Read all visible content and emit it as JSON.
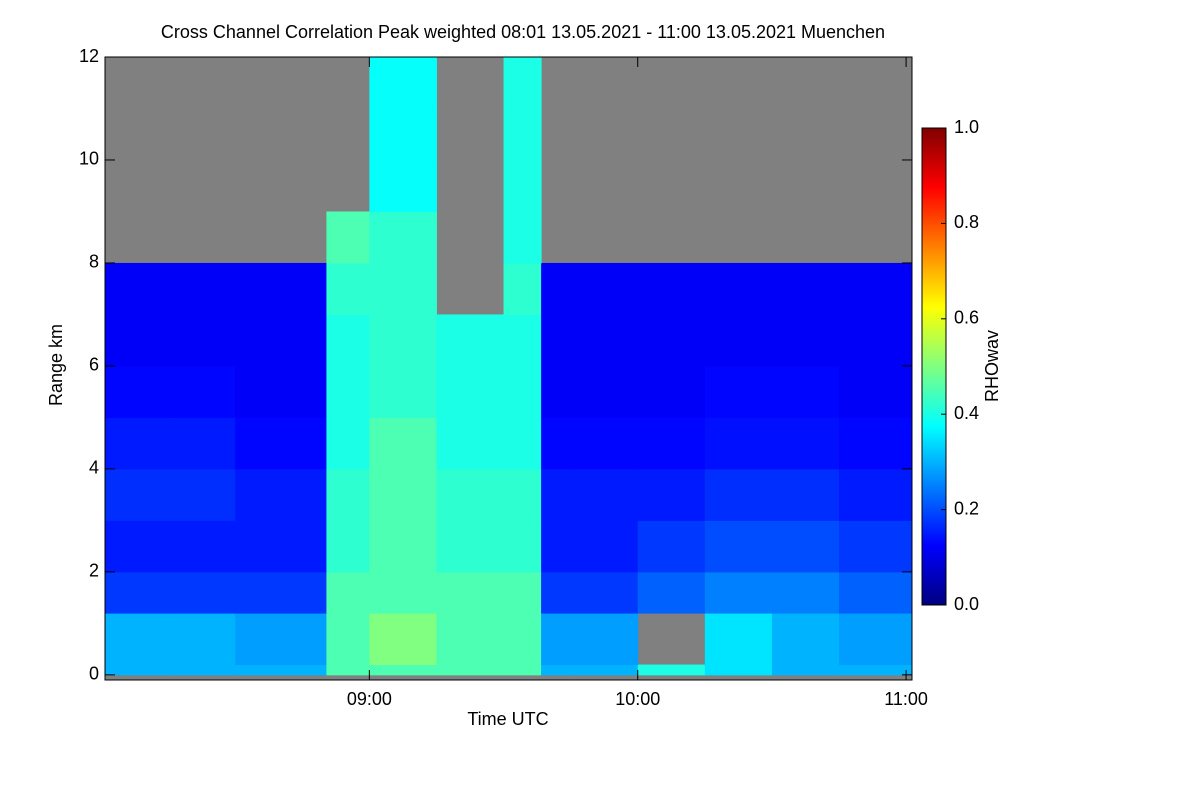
{
  "chart_data": {
    "type": "heatmap",
    "title": "Cross Channel Correlation Peak weighted   08:01 13.05.2021 - 11:00 13.05.2021 Muenchen",
    "x_label": "Time UTC",
    "y_label": "Range km",
    "colorbar_label": "RHOwav",
    "colormap": "jet",
    "missing_color": "#808080",
    "x_edges": [
      8.015,
      8.25,
      8.5,
      8.84,
      9.0,
      9.25,
      9.5,
      9.64,
      9.75,
      10.0,
      10.25,
      10.5,
      10.75,
      11.022
    ],
    "y_edges": [
      0,
      0.2,
      1.2,
      2,
      3,
      4,
      5,
      6,
      7,
      8,
      9,
      10,
      11,
      12
    ],
    "values": [
      [
        0.3,
        0.3,
        0.3,
        0.45,
        0.45,
        0.45,
        0.45,
        0.3,
        0.3,
        0.4,
        0.35,
        0.3,
        0.3
      ],
      [
        0.3,
        0.3,
        0.28,
        0.45,
        0.5,
        0.45,
        0.45,
        0.28,
        0.28,
        null,
        0.35,
        0.3,
        0.28
      ],
      [
        0.18,
        0.18,
        0.18,
        0.45,
        0.45,
        0.45,
        0.45,
        0.18,
        0.18,
        0.22,
        0.25,
        0.25,
        0.22
      ],
      [
        0.15,
        0.15,
        0.15,
        0.42,
        0.45,
        0.42,
        0.42,
        0.15,
        0.15,
        0.18,
        0.2,
        0.2,
        0.18
      ],
      [
        0.17,
        0.17,
        0.15,
        0.42,
        0.45,
        0.42,
        0.42,
        0.15,
        0.15,
        0.15,
        0.17,
        0.17,
        0.15
      ],
      [
        0.15,
        0.15,
        0.13,
        0.4,
        0.45,
        0.4,
        0.4,
        0.13,
        0.13,
        0.13,
        0.14,
        0.14,
        0.13
      ],
      [
        0.13,
        0.13,
        0.12,
        0.4,
        0.42,
        0.4,
        0.4,
        0.12,
        0.12,
        0.12,
        0.13,
        0.13,
        0.12
      ],
      [
        0.12,
        0.12,
        0.12,
        0.4,
        0.42,
        0.4,
        0.4,
        0.12,
        0.12,
        0.12,
        0.12,
        0.12,
        0.12
      ],
      [
        0.12,
        0.12,
        0.12,
        0.42,
        0.42,
        null,
        0.42,
        0.12,
        0.12,
        0.12,
        0.12,
        0.12,
        0.12
      ],
      [
        null,
        null,
        null,
        0.45,
        0.42,
        null,
        0.4,
        null,
        null,
        null,
        null,
        null,
        null
      ],
      [
        null,
        null,
        null,
        null,
        0.38,
        null,
        0.4,
        null,
        null,
        null,
        null,
        null,
        null
      ],
      [
        null,
        null,
        null,
        null,
        0.38,
        null,
        0.4,
        null,
        null,
        null,
        null,
        null,
        null
      ],
      [
        null,
        null,
        null,
        null,
        0.38,
        null,
        0.4,
        null,
        null,
        null,
        null,
        null,
        null
      ]
    ],
    "xlim": [
      8.015,
      11.022
    ],
    "ylim": [
      -0.1,
      12
    ],
    "xticks": [
      {
        "value": 9,
        "label": "09:00"
      },
      {
        "value": 10,
        "label": "10:00"
      },
      {
        "value": 11,
        "label": "11:00"
      }
    ],
    "yticks": [
      0,
      2,
      4,
      6,
      8,
      10,
      12
    ],
    "zlim": [
      0,
      1
    ],
    "zticks": [
      {
        "value": 0,
        "label": "0.0"
      },
      {
        "value": 0.2,
        "label": "0.2"
      },
      {
        "value": 0.4,
        "label": "0.4"
      },
      {
        "value": 0.6,
        "label": "0.6"
      },
      {
        "value": 0.8,
        "label": "0.8"
      },
      {
        "value": 1,
        "label": "1.0"
      }
    ]
  }
}
